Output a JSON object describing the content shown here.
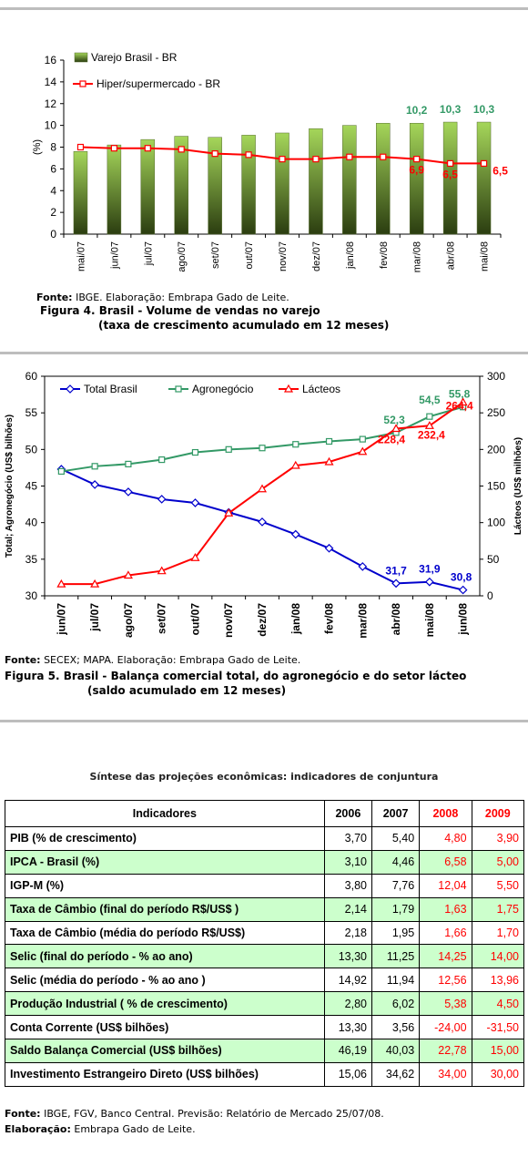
{
  "chart_data": [
    {
      "type": "bar+line",
      "ylabel": "(%)",
      "ylim": [
        0,
        16
      ],
      "yticks": [
        "0",
        "2",
        "4",
        "6",
        "8",
        "10",
        "12",
        "14",
        "16"
      ],
      "categories": [
        "mai/07",
        "jun/07",
        "jul/07",
        "ago/07",
        "set/07",
        "out/07",
        "nov/07",
        "dez/07",
        "jan/08",
        "fev/08",
        "mar/08",
        "abr/08",
        "mai/08"
      ],
      "series": [
        {
          "name": "Varejo Brasil - BR",
          "kind": "bar",
          "color": "#8cc63f",
          "values": [
            7.6,
            8.2,
            8.7,
            9.0,
            8.9,
            9.1,
            9.3,
            9.7,
            10.0,
            10.2,
            10.2,
            10.3,
            10.3
          ],
          "labels": [
            "",
            "",
            "",
            "",
            "",
            "",
            "",
            "",
            "",
            "",
            "10,2",
            "10,3",
            "10,3"
          ]
        },
        {
          "name": "Hiper/supermercado - BR",
          "kind": "line",
          "color": "#ff0000",
          "values": [
            8.0,
            7.9,
            7.9,
            7.8,
            7.4,
            7.3,
            6.9,
            6.9,
            7.1,
            7.1,
            6.9,
            6.5,
            6.5
          ],
          "labels": [
            "",
            "",
            "",
            "",
            "",
            "",
            "",
            "",
            "",
            "",
            "6,9",
            "6,5",
            "6,5"
          ]
        }
      ],
      "legend": "top-left",
      "grid": false
    },
    {
      "type": "line",
      "ylabel_left": "Total; Agronegócio (US$ bilhões)",
      "ylabel_right": "Lácteos (US$ milhões)",
      "ylim_left": [
        30,
        60
      ],
      "ylim_right": [
        0,
        300
      ],
      "yticks_left": [
        "30",
        "35",
        "40",
        "45",
        "50",
        "55",
        "60"
      ],
      "yticks_right": [
        "0",
        "50",
        "100",
        "150",
        "200",
        "250",
        "300"
      ],
      "categories": [
        "jun/07",
        "jul/07",
        "ago/07",
        "set/07",
        "out/07",
        "nov/07",
        "dez/07",
        "jan/08",
        "fev/08",
        "mar/08",
        "abr/08",
        "mai/08",
        "jun/08"
      ],
      "series": [
        {
          "name": "Total Brasil",
          "axis": "left",
          "color": "#0000cc",
          "marker": "diamond",
          "values": [
            47.3,
            45.2,
            44.2,
            43.2,
            42.7,
            41.4,
            40.1,
            38.4,
            36.5,
            34.0,
            31.7,
            31.9,
            30.8
          ],
          "labels": [
            "",
            "",
            "",
            "",
            "",
            "",
            "",
            "",
            "",
            "",
            "31,7",
            "31,9",
            "30,8"
          ]
        },
        {
          "name": "Agronegócio",
          "axis": "left",
          "color": "#339966",
          "marker": "square",
          "values": [
            47.0,
            47.7,
            48.0,
            48.6,
            49.6,
            50.0,
            50.2,
            50.7,
            51.1,
            51.4,
            52.3,
            54.5,
            55.8
          ],
          "labels": [
            "",
            "",
            "",
            "",
            "",
            "",
            "",
            "",
            "",
            "",
            "52,3",
            "54,5",
            "55,8"
          ]
        },
        {
          "name": "Lácteos",
          "axis": "right",
          "color": "#ff0000",
          "marker": "triangle",
          "values": [
            16,
            16,
            28,
            34,
            52,
            113,
            146,
            178,
            183,
            197,
            228.4,
            232.4,
            264.4
          ],
          "labels": [
            "",
            "",
            "",
            "",
            "",
            "",
            "",
            "",
            "",
            "",
            "228,4",
            "232,4",
            "264,4"
          ]
        }
      ],
      "legend": "top",
      "grid": false
    }
  ],
  "fig4": {
    "source_label": "Fonte:",
    "source_text": " IBGE. Elaboração: Embrapa Gado de Leite.",
    "title1": "Figura 4. Brasil - Volume de vendas no varejo",
    "title2": "(taxa de crescimento acumulado em 12 meses)"
  },
  "fig5": {
    "source_label": "Fonte:",
    "source_text": " SECEX; MAPA. Elaboração: Embrapa Gado de Leite.",
    "title1": "Figura 5. Brasil - Balança comercial total, do agronegócio e do setor lácteo",
    "title2": "(saldo acumulado em 12 meses)"
  },
  "table": {
    "title": "Síntese das projeções econômicas: indicadores de conjuntura",
    "headers": [
      "Indicadores",
      "2006",
      "2007",
      "2008",
      "2009"
    ],
    "rows": [
      [
        "PIB (% de crescimento)",
        "3,70",
        "5,40",
        "4,80",
        "3,90"
      ],
      [
        "IPCA - Brasil (%)",
        "3,10",
        "4,46",
        "6,58",
        "5,00"
      ],
      [
        "IGP-M (%)",
        "3,80",
        "7,76",
        "12,04",
        "5,50"
      ],
      [
        "Taxa de Câmbio (final do período R$/US$ )",
        "2,14",
        "1,79",
        "1,63",
        "1,75"
      ],
      [
        "Taxa de Câmbio (média do período R$/US$)",
        "2,18",
        "1,95",
        "1,66",
        "1,70"
      ],
      [
        "Selic (final do período - % ao ano)",
        "13,30",
        "11,25",
        "14,25",
        "14,00"
      ],
      [
        "Selic (média do período - % ao ano )",
        "14,92",
        "11,94",
        "12,56",
        "13,96"
      ],
      [
        "Produção Industrial ( % de crescimento)",
        "2,80",
        "6,02",
        "5,38",
        "4,50"
      ],
      [
        "Conta Corrente (US$ bilhões)",
        "13,30",
        "3,56",
        "-24,00",
        "-31,50"
      ],
      [
        "Saldo Balança Comercial (US$ bilhões)",
        "46,19",
        "40,03",
        "22,78",
        "15,00"
      ],
      [
        "Investimento Estrangeiro Direto (US$ bilhões)",
        "15,06",
        "34,62",
        "34,00",
        "30,00"
      ]
    ]
  },
  "footer": {
    "source_label": "Fonte:",
    "source_text": " IBGE, FGV, Banco Central. Previsão: Relatório de Mercado 25/07/08.",
    "elab_label": "Elaboração:",
    "elab_text": " Embrapa Gado de Leite."
  }
}
